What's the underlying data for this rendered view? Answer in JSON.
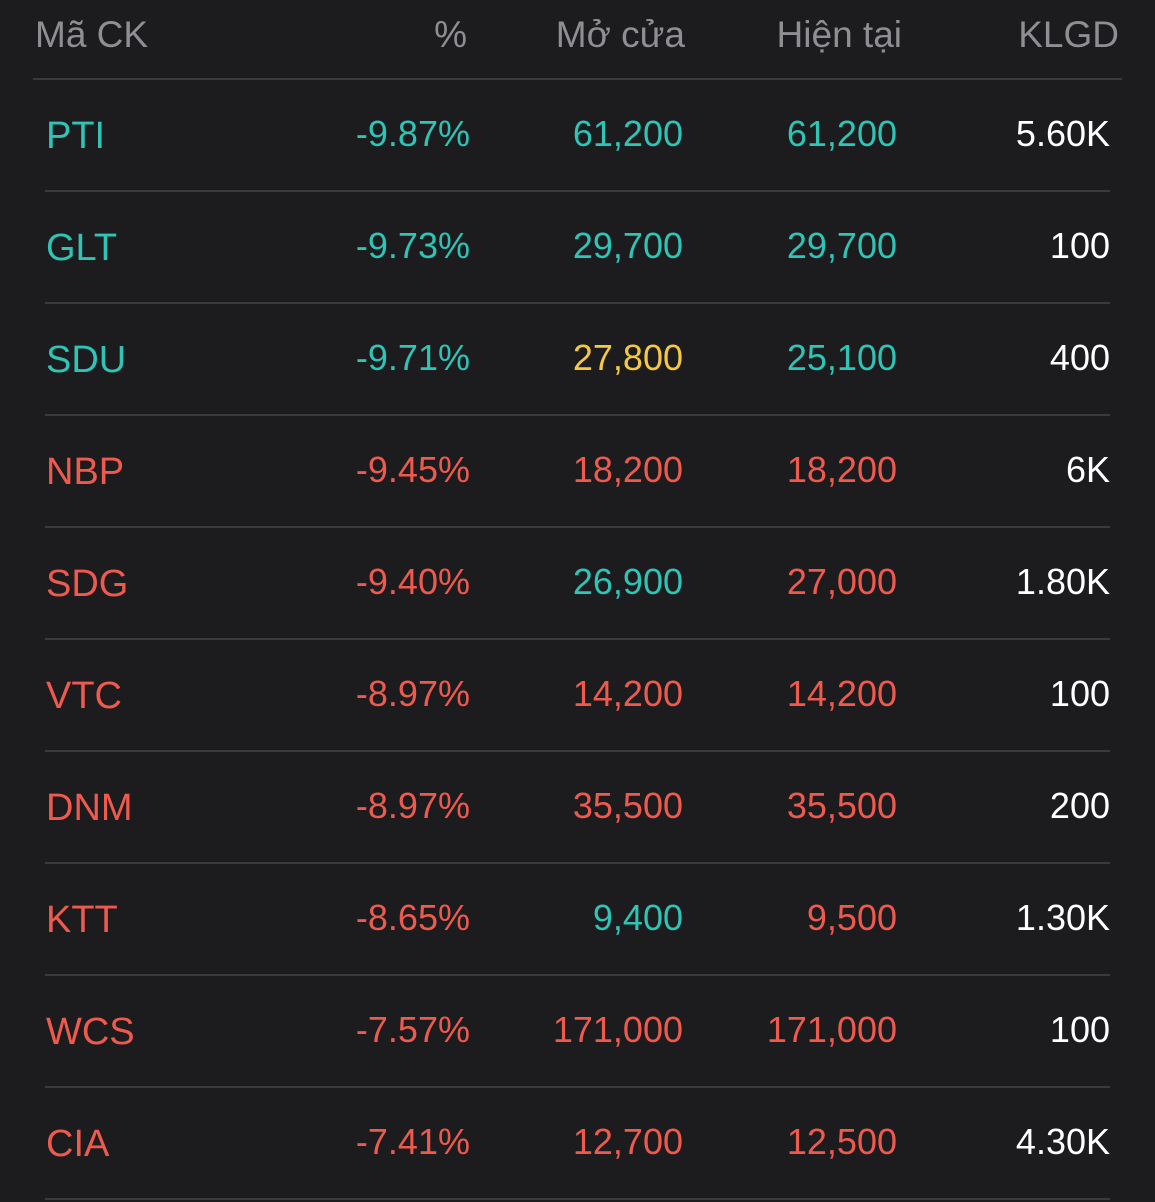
{
  "colors": {
    "background": "#1c1c1e",
    "header_text": "#8e8e93",
    "divider": "#3a3a3c",
    "down": "#ef5a4f",
    "floor": "#2ec4b6",
    "reference": "#f5c842",
    "volume": "#ffffff"
  },
  "header": {
    "code": "Mã CK",
    "percent": "%",
    "open": "Mở cửa",
    "current": "Hiện tại",
    "volume": "KLGD"
  },
  "rows": [
    {
      "code": "PTI",
      "percent": "-9.87%",
      "open": "61,200",
      "current": "61,200",
      "volume": "5.60K",
      "code_color": "floor",
      "percent_color": "floor",
      "open_color": "floor",
      "current_color": "floor"
    },
    {
      "code": "GLT",
      "percent": "-9.73%",
      "open": "29,700",
      "current": "29,700",
      "volume": "100",
      "code_color": "floor",
      "percent_color": "floor",
      "open_color": "floor",
      "current_color": "floor"
    },
    {
      "code": "SDU",
      "percent": "-9.71%",
      "open": "27,800",
      "current": "25,100",
      "volume": "400",
      "code_color": "floor",
      "percent_color": "floor",
      "open_color": "reference",
      "current_color": "floor"
    },
    {
      "code": "NBP",
      "percent": "-9.45%",
      "open": "18,200",
      "current": "18,200",
      "volume": "6K",
      "code_color": "down",
      "percent_color": "down",
      "open_color": "down",
      "current_color": "down"
    },
    {
      "code": "SDG",
      "percent": "-9.40%",
      "open": "26,900",
      "current": "27,000",
      "volume": "1.80K",
      "code_color": "down",
      "percent_color": "down",
      "open_color": "floor",
      "current_color": "down"
    },
    {
      "code": "VTC",
      "percent": "-8.97%",
      "open": "14,200",
      "current": "14,200",
      "volume": "100",
      "code_color": "down",
      "percent_color": "down",
      "open_color": "down",
      "current_color": "down"
    },
    {
      "code": "DNM",
      "percent": "-8.97%",
      "open": "35,500",
      "current": "35,500",
      "volume": "200",
      "code_color": "down",
      "percent_color": "down",
      "open_color": "down",
      "current_color": "down"
    },
    {
      "code": "KTT",
      "percent": "-8.65%",
      "open": "9,400",
      "current": "9,500",
      "volume": "1.30K",
      "code_color": "down",
      "percent_color": "down",
      "open_color": "floor",
      "current_color": "down"
    },
    {
      "code": "WCS",
      "percent": "-7.57%",
      "open": "171,000",
      "current": "171,000",
      "volume": "100",
      "code_color": "down",
      "percent_color": "down",
      "open_color": "down",
      "current_color": "down"
    },
    {
      "code": "CIA",
      "percent": "-7.41%",
      "open": "12,700",
      "current": "12,500",
      "volume": "4.30K",
      "code_color": "down",
      "percent_color": "down",
      "open_color": "down",
      "current_color": "down"
    }
  ]
}
